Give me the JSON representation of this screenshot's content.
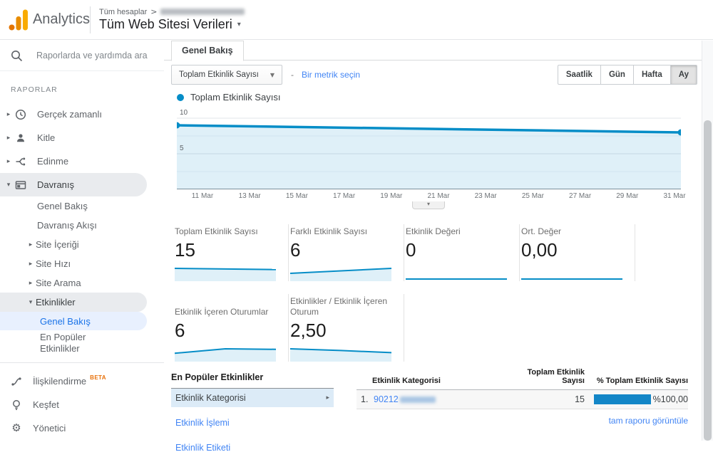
{
  "colors": {
    "chart_blue": "#058dc7",
    "chart_fill": "rgba(5,141,199,0.13)",
    "bar_blue": "#1386c7",
    "link_blue": "#4285f4",
    "active_blue": "#1a73e8",
    "beta_orange": "#e8710a",
    "logo_amber": "#f9ab00",
    "logo_orange": "#e37400"
  },
  "header": {
    "product_name": "Analytics",
    "breadcrumb_root": "Tüm hesaplar",
    "breadcrumb_separator": ">",
    "view_title": "Tüm Web Sitesi Verileri"
  },
  "sidebar": {
    "search_placeholder": "Raporlarda ve yardımda ara",
    "section_label": "RAPORLAR",
    "items": [
      {
        "label": "Gerçek zamanlı"
      },
      {
        "label": "Kitle"
      },
      {
        "label": "Edinme"
      },
      {
        "label": "Davranış"
      },
      {
        "label": "Genel Bakış"
      },
      {
        "label": "Davranış Akışı"
      },
      {
        "label": "Site İçeriği"
      },
      {
        "label": "Site Hızı"
      },
      {
        "label": "Site Arama"
      },
      {
        "label": "Etkinlikler"
      },
      {
        "label": "Genel Bakış"
      },
      {
        "label": "En Popüler Etkinlikler"
      },
      {
        "label": "İlişkilendirme",
        "badge": "BETA"
      },
      {
        "label": "Keşfet"
      },
      {
        "label": "Yönetici"
      }
    ]
  },
  "main": {
    "tab_label": "Genel Bakış",
    "metric_dropdown_label": "Toplam Etkinlik Sayısı",
    "separator_dash": "-",
    "select_metric_link": "Bir metrik seçin",
    "granularity_options": [
      "Saatlik",
      "Gün",
      "Hafta",
      "Ay"
    ],
    "granularity_selected": "Ay",
    "legend_label": "Toplam Etkinlik Sayısı"
  },
  "chart_data": {
    "type": "line",
    "title": "Toplam Etkinlik Sayısı",
    "x_tick_labels": [
      "11 Mar",
      "13 Mar",
      "15 Mar",
      "17 Mar",
      "19 Mar",
      "21 Mar",
      "23 Mar",
      "25 Mar",
      "27 Mar",
      "29 Mar",
      "31 Mar"
    ],
    "y_ticks": [
      5,
      10
    ],
    "y_gridlines": [
      2.5,
      5,
      7.5,
      10
    ],
    "ylim": [
      0,
      11.6
    ],
    "grid": true,
    "legend_position": "top-left",
    "area_fill": true,
    "series": [
      {
        "name": "Toplam Etkinlik Sayısı",
        "points": [
          {
            "x": 0,
            "y": 9
          },
          {
            "x": 1,
            "y": 8
          }
        ]
      }
    ]
  },
  "scorecards": [
    {
      "label": "Toplam Etkinlik Sayısı",
      "value": "15",
      "spark": [
        9,
        8
      ]
    },
    {
      "label": "Farklı Etkinlik Sayısı",
      "value": "6",
      "spark": [
        3.2,
        6
      ]
    },
    {
      "label": "Etkinlik Değeri",
      "value": "0",
      "spark": [
        0,
        0
      ]
    },
    {
      "label": "Ort. Değer",
      "value": "0,00",
      "spark": [
        0,
        0
      ]
    },
    {
      "label": "Etkinlik İçeren Oturumlar",
      "value": "6",
      "spark": [
        3.5,
        6,
        5.7
      ]
    },
    {
      "label": "Etkinlikler / Etkinlik İçeren Oturum",
      "value": "2,50",
      "spark": [
        2.5,
        2.1,
        1.6
      ]
    }
  ],
  "popular_events": {
    "title": "En Popüler Etkinlikler",
    "items": [
      "Etkinlik Kategorisi",
      "Etkinlik İşlemi",
      "Etkinlik Etiketi"
    ],
    "selected_item": "Etkinlik Kategorisi"
  },
  "events_table": {
    "columns": [
      "Etkinlik Kategorisi",
      "Toplam Etkinlik Sayısı",
      "% Toplam Etkinlik Sayısı"
    ],
    "rows": [
      {
        "rank": "1.",
        "category_visible": "90212",
        "total": "15",
        "percent_label": "%100,00",
        "percent_value": 100
      }
    ],
    "footer_link": "tam raporu görüntüle"
  }
}
